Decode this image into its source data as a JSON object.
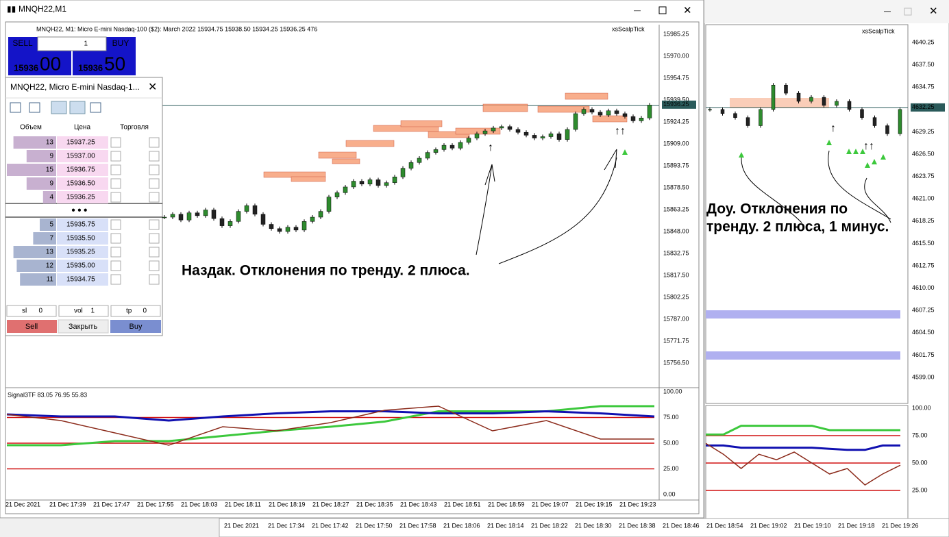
{
  "window": {
    "title": "MNQH22,M1"
  },
  "chart": {
    "header": "MNQH22, M1:  Micro E-mini Nasdaq-100 ($2): March 2022  15934.75 15938.50 15934.25 15936.25  476",
    "indicator": "xsScalpTick",
    "trade_panel": {
      "sell": "SELL",
      "buy": "BUY",
      "lots": "1",
      "bid_big": "15936",
      "bid_small": "00",
      "ask_big": "15936",
      "ask_small": "50"
    },
    "price_axis": [
      "15985.25",
      "15970.00",
      "15954.75",
      "15939.50",
      "15924.25",
      "15909.00",
      "15893.75",
      "15878.50",
      "15863.25",
      "15848.00",
      "15832.75",
      "15817.50",
      "15802.25",
      "15787.00",
      "15771.75",
      "15756.50"
    ],
    "current_price": "15936.25",
    "closes": [
      15858,
      15860,
      15856,
      15861,
      15859,
      15863,
      15857,
      15852,
      15855,
      15862,
      15866,
      15860,
      15853,
      15850,
      15848,
      15851,
      15849,
      15855,
      15858,
      15862,
      15872,
      15875,
      15879,
      15883,
      15881,
      15884,
      15880,
      15882,
      15886,
      15892,
      15896,
      15899,
      15903,
      15905,
      15908,
      15906,
      15910,
      15913,
      15916,
      15918,
      15920,
      15921,
      15919,
      15917,
      15915,
      15913,
      15914,
      15916,
      15912,
      15919,
      15930,
      15933,
      15931,
      15929,
      15932,
      15930,
      15928,
      15925,
      15927,
      15936
    ],
    "annotation": "Наздак. Отклонения по тренду. 2 плюса.",
    "subwindow": {
      "label": "Signal3TF 83.05 76.95 55.83",
      "axis": [
        "100.00",
        "75.00",
        "50.00",
        "25.00",
        "0.00"
      ],
      "levels": [
        75,
        50,
        25
      ],
      "series": [
        {
          "color": "#3cc83c",
          "values": [
            48,
            48,
            52,
            52,
            57,
            62,
            66,
            71,
            81,
            81,
            81,
            86,
            86
          ]
        },
        {
          "color": "#1010b0",
          "values": [
            78,
            76,
            76,
            72,
            76,
            79,
            81,
            81,
            79,
            79,
            81,
            79,
            76
          ]
        },
        {
          "color": "#8b2a1a",
          "values": [
            78,
            72,
            60,
            48,
            66,
            62,
            70,
            82,
            86,
            62,
            72,
            54,
            54
          ]
        }
      ]
    },
    "time_axis": [
      "21 Dec 2021",
      "21 Dec 17:39",
      "21 Dec 17:47",
      "21 Dec 17:55",
      "21 Dec 18:03",
      "21 Dec 18:11",
      "21 Dec 18:19",
      "21 Dec 18:27",
      "21 Dec 18:35",
      "21 Dec 18:43",
      "21 Dec 18:51",
      "21 Dec 18:59",
      "21 Dec 19:07",
      "21 Dec 19:15",
      "21 Dec 19:23"
    ]
  },
  "dom": {
    "title": "MNQH22, Micro E-mini Nasdaq-1...",
    "headers": [
      "Объем",
      "Цена",
      "Торговля"
    ],
    "asks": [
      {
        "volume": 13,
        "price": "15937.25"
      },
      {
        "volume": 9,
        "price": "15937.00"
      },
      {
        "volume": 15,
        "price": "15936.75"
      },
      {
        "volume": 9,
        "price": "15936.50"
      },
      {
        "volume": 4,
        "price": "15936.25"
      }
    ],
    "bids": [
      {
        "volume": 5,
        "price": "15935.75"
      },
      {
        "volume": 7,
        "price": "15935.50"
      },
      {
        "volume": 13,
        "price": "15935.25"
      },
      {
        "volume": 12,
        "price": "15935.00"
      },
      {
        "volume": 11,
        "price": "15934.75"
      }
    ],
    "fields": [
      {
        "label": "sl",
        "value": "0"
      },
      {
        "label": "vol",
        "value": "1"
      },
      {
        "label": "tp",
        "value": "0"
      }
    ],
    "buttons": [
      "Sell",
      "Закрыть",
      "Buy"
    ]
  },
  "chart2": {
    "indicator": "xsScalpTick",
    "price_axis": [
      "4640.25",
      "4637.50",
      "4634.75",
      "4632.00",
      "4629.25",
      "4626.50",
      "4623.75",
      "4621.00",
      "4618.25",
      "4615.50",
      "4612.75",
      "4610.00",
      "4607.25",
      "4604.50",
      "4601.75",
      "4599.00"
    ],
    "current_price": "4632.25",
    "closes": [
      4632,
      4631.5,
      4631,
      4630,
      4632,
      4635,
      4634,
      4633,
      4633.5,
      4632.5,
      4633,
      4632,
      4631,
      4630,
      4629,
      4632
    ],
    "annotation": [
      "Доу. Отклонения по",
      "тренду. 2 плюса, 1 минус."
    ],
    "subwindow": {
      "axis": [
        "100.00",
        "75.00",
        "50.00",
        "25.00"
      ],
      "levels": [
        75,
        50,
        25
      ],
      "series": [
        {
          "color": "#3cc83c",
          "values": [
            76,
            76,
            84,
            84,
            84,
            84,
            84,
            80,
            80,
            80,
            80,
            80
          ]
        },
        {
          "color": "#1010b0",
          "values": [
            66,
            66,
            64,
            64,
            64,
            64,
            64,
            63,
            62,
            62,
            66,
            66
          ]
        },
        {
          "color": "#8b2a1a",
          "values": [
            68,
            58,
            45,
            58,
            53,
            60,
            50,
            40,
            45,
            30,
            40,
            48
          ]
        }
      ]
    }
  },
  "bottom_time_axis": [
    "21 Dec 2021",
    "21 Dec 17:34",
    "21 Dec 17:42",
    "21 Dec 17:50",
    "21 Dec 17:58",
    "21 Dec 18:06",
    "21 Dec 18:14",
    "21 Dec 18:22",
    "21 Dec 18:30",
    "21 Dec 18:38",
    "21 Dec 18:46",
    "21 Dec 18:54",
    "21 Dec 19:02",
    "21 Dec 19:10",
    "21 Dec 19:18",
    "21 Dec 19:26"
  ]
}
